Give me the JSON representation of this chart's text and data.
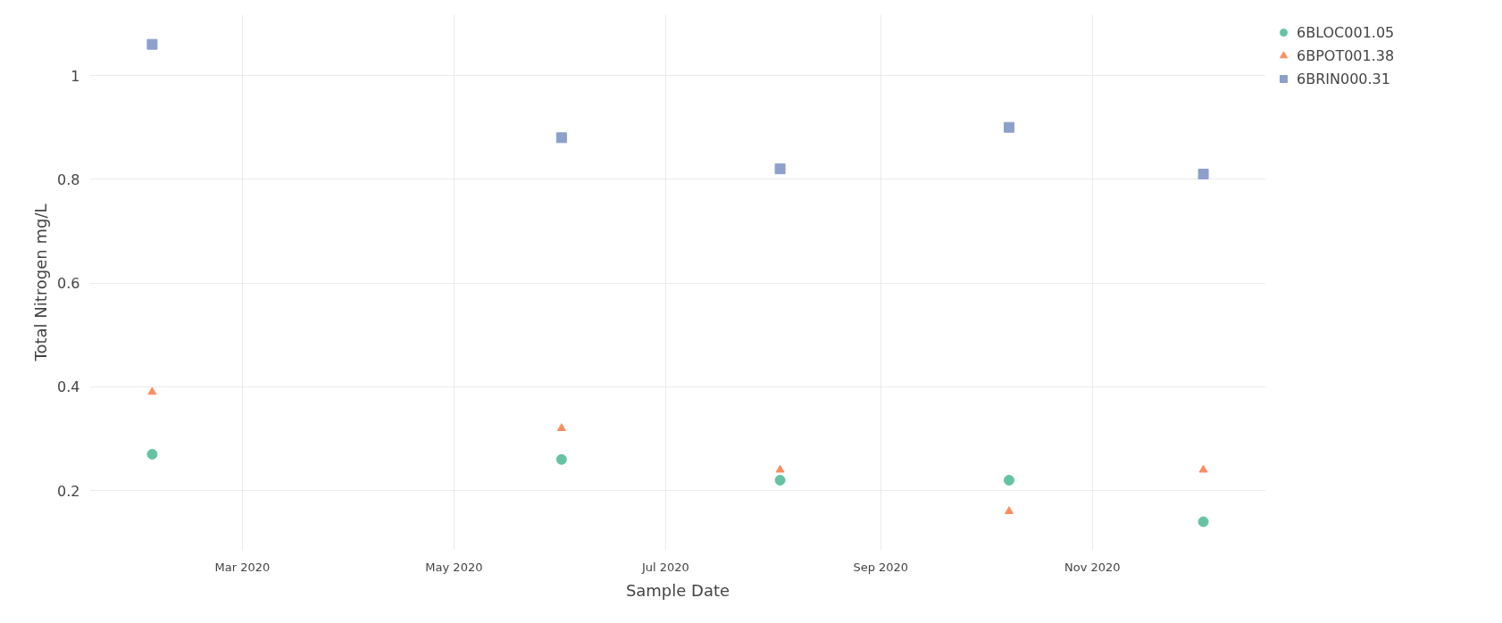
{
  "chart_data": {
    "type": "scatter",
    "xlabel": "Sample Date",
    "ylabel": "Total Nitrogen mg/L",
    "x": [
      "2020-02-04",
      "2020-06-01",
      "2020-08-03",
      "2020-10-08",
      "2020-12-03"
    ],
    "series": [
      {
        "name": "6BLOC001.05",
        "color": "#66c2a5",
        "marker": "circle",
        "values": [
          0.27,
          0.26,
          0.22,
          0.22,
          0.14
        ]
      },
      {
        "name": "6BPOT001.38",
        "color": "#fc8d62",
        "marker": "triangle",
        "values": [
          0.39,
          0.32,
          0.24,
          0.16,
          0.24
        ]
      },
      {
        "name": "6BRIN000.31",
        "color": "#8da0cb",
        "marker": "square",
        "values": [
          1.06,
          0.88,
          0.82,
          0.9,
          0.81
        ]
      }
    ],
    "xlim": [
      "2020-01-17",
      "2020-12-21"
    ],
    "xticks": [
      {
        "value": "2020-03-01",
        "label": "Mar 2020"
      },
      {
        "value": "2020-05-01",
        "label": "May 2020"
      },
      {
        "value": "2020-07-01",
        "label": "Jul 2020"
      },
      {
        "value": "2020-09-01",
        "label": "Sep 2020"
      },
      {
        "value": "2020-11-01",
        "label": "Nov 2020"
      }
    ],
    "ylim": [
      0.085,
      1.117
    ],
    "yticks": [
      0.2,
      0.4,
      0.6,
      {
        "value": 0.8,
        "label": "0.8"
      },
      1
    ],
    "grid": true,
    "legend": "top right"
  }
}
